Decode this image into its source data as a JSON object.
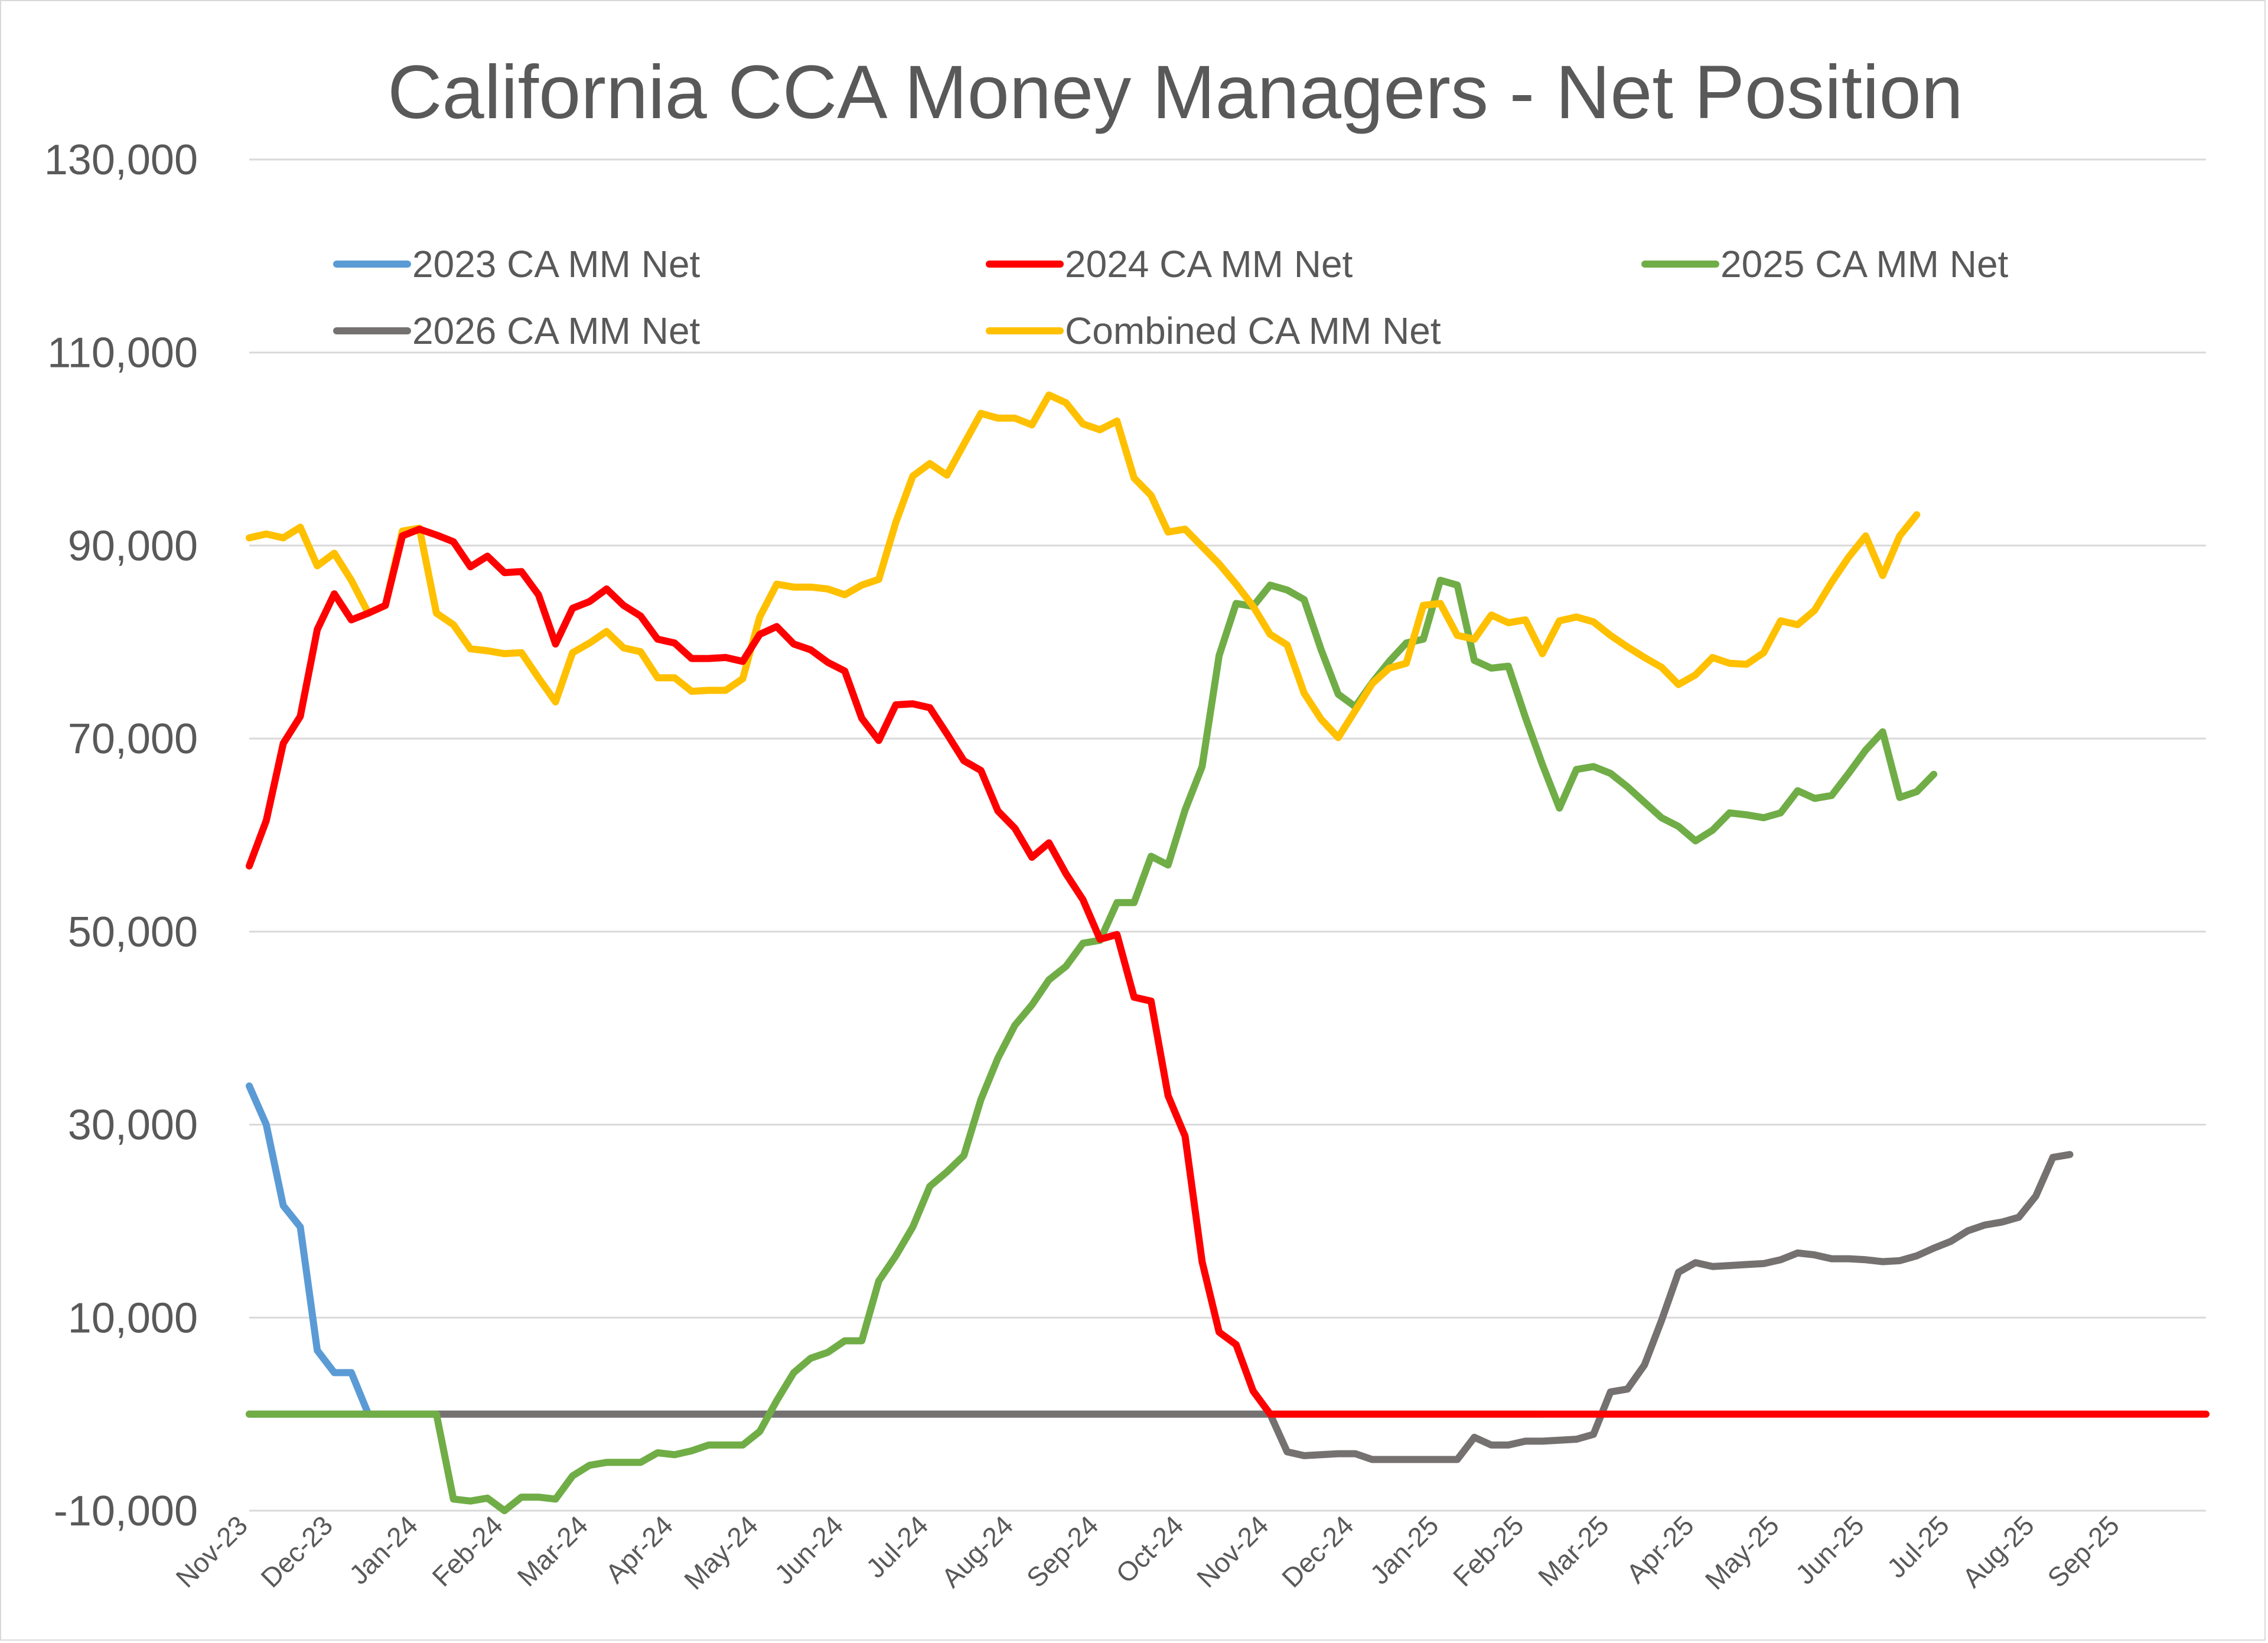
{
  "chart_data": {
    "type": "line",
    "title": "California CCA Money Managers - Net Position",
    "xlabel": "",
    "ylabel": "",
    "ylim": [
      -10000,
      130000
    ],
    "yticks": [
      -10000,
      10000,
      30000,
      50000,
      70000,
      90000,
      110000,
      130000
    ],
    "ytick_labels": [
      "-10,000",
      "10,000",
      "30,000",
      "50,000",
      "70,000",
      "90,000",
      "110,000",
      "130,000"
    ],
    "x_tick_labels": [
      "Nov-23",
      "Dec-23",
      "Jan-24",
      "Feb-24",
      "Mar-24",
      "Apr-24",
      "May-24",
      "Jun-24",
      "Jul-24",
      "Aug-24",
      "Sep-24",
      "Oct-24",
      "Nov-24",
      "Dec-24",
      "Jan-25",
      "Feb-25",
      "Mar-25",
      "Apr-25",
      "May-25",
      "Jun-25",
      "Jul-25",
      "Aug-25",
      "Sep-25"
    ],
    "x_tick_index": [
      0,
      5,
      10,
      15,
      20,
      25,
      30,
      35,
      40,
      45,
      50,
      55,
      60,
      65,
      70,
      75,
      80,
      85,
      90,
      95,
      100,
      105,
      110
    ],
    "num_points": 116,
    "grid": true,
    "legend_position": "top",
    "series": [
      {
        "name": "2023 CA MM Net",
        "color": "#5b9bd5",
        "points": [
          [
            0,
            34000
          ],
          [
            1,
            30000
          ],
          [
            2,
            21600
          ],
          [
            3,
            19400
          ],
          [
            4,
            6600
          ],
          [
            5,
            4300
          ],
          [
            6,
            4300
          ],
          [
            7,
            0
          ],
          [
            76,
            0
          ]
        ]
      },
      {
        "name": "2024 CA MM Net",
        "color": "#ff0000",
        "points": [
          [
            0,
            56800
          ],
          [
            1,
            61500
          ],
          [
            2,
            69500
          ],
          [
            3,
            72300
          ],
          [
            4,
            81300
          ],
          [
            5,
            85000
          ],
          [
            6,
            82300
          ],
          [
            7,
            83000
          ],
          [
            8,
            83800
          ],
          [
            9,
            91000
          ],
          [
            10,
            91700
          ],
          [
            11,
            91100
          ],
          [
            12,
            90400
          ],
          [
            13,
            87800
          ],
          [
            14,
            88900
          ],
          [
            15,
            87200
          ],
          [
            16,
            87300
          ],
          [
            17,
            84900
          ],
          [
            18,
            79800
          ],
          [
            19,
            83500
          ],
          [
            20,
            84200
          ],
          [
            21,
            85500
          ],
          [
            22,
            83800
          ],
          [
            23,
            82700
          ],
          [
            24,
            80300
          ],
          [
            25,
            79900
          ],
          [
            26,
            78300
          ],
          [
            27,
            78300
          ],
          [
            28,
            78400
          ],
          [
            29,
            78000
          ],
          [
            30,
            80800
          ],
          [
            31,
            81600
          ],
          [
            32,
            79800
          ],
          [
            33,
            79200
          ],
          [
            34,
            77900
          ],
          [
            35,
            77000
          ],
          [
            36,
            72100
          ],
          [
            37,
            69800
          ],
          [
            38,
            73500
          ],
          [
            39,
            73600
          ],
          [
            40,
            73200
          ],
          [
            41,
            70500
          ],
          [
            42,
            67700
          ],
          [
            43,
            66700
          ],
          [
            44,
            62500
          ],
          [
            45,
            60700
          ],
          [
            46,
            57700
          ],
          [
            47,
            59200
          ],
          [
            48,
            56000
          ],
          [
            49,
            53300
          ],
          [
            50,
            49200
          ],
          [
            51,
            49700
          ],
          [
            52,
            43200
          ],
          [
            53,
            42800
          ],
          [
            54,
            33000
          ],
          [
            55,
            28800
          ],
          [
            56,
            15800
          ],
          [
            57,
            8500
          ],
          [
            58,
            7200
          ],
          [
            59,
            2400
          ],
          [
            60,
            0
          ],
          [
            115,
            0
          ]
        ]
      },
      {
        "name": "2025 CA MM Net",
        "color": "#70ad47",
        "points": [
          [
            0,
            0
          ],
          [
            11,
            0
          ],
          [
            12,
            -8800
          ],
          [
            13,
            -9000
          ],
          [
            14,
            -8700
          ],
          [
            15,
            -10000
          ],
          [
            16,
            -8600
          ],
          [
            17,
            -8600
          ],
          [
            18,
            -8800
          ],
          [
            19,
            -6400
          ],
          [
            20,
            -5300
          ],
          [
            21,
            -5000
          ],
          [
            22,
            -5000
          ],
          [
            23,
            -5000
          ],
          [
            24,
            -4000
          ],
          [
            25,
            -4200
          ],
          [
            26,
            -3800
          ],
          [
            27,
            -3200
          ],
          [
            28,
            -3200
          ],
          [
            29,
            -3200
          ],
          [
            30,
            -1800
          ],
          [
            31,
            1400
          ],
          [
            32,
            4300
          ],
          [
            33,
            5800
          ],
          [
            34,
            6400
          ],
          [
            35,
            7600
          ],
          [
            36,
            7600
          ],
          [
            37,
            13800
          ],
          [
            38,
            16400
          ],
          [
            39,
            19400
          ],
          [
            40,
            23600
          ],
          [
            41,
            25100
          ],
          [
            42,
            26800
          ],
          [
            43,
            32600
          ],
          [
            44,
            36900
          ],
          [
            45,
            40300
          ],
          [
            46,
            42400
          ],
          [
            47,
            45000
          ],
          [
            48,
            46400
          ],
          [
            49,
            48800
          ],
          [
            50,
            49100
          ],
          [
            51,
            53000
          ],
          [
            52,
            53000
          ],
          [
            53,
            57800
          ],
          [
            54,
            56900
          ],
          [
            55,
            62600
          ],
          [
            56,
            67100
          ],
          [
            57,
            78600
          ],
          [
            58,
            84000
          ],
          [
            59,
            83700
          ],
          [
            60,
            85900
          ],
          [
            61,
            85400
          ],
          [
            62,
            84400
          ],
          [
            63,
            79200
          ],
          [
            64,
            74600
          ],
          [
            65,
            73300
          ],
          [
            66,
            75800
          ],
          [
            67,
            78000
          ],
          [
            68,
            79900
          ],
          [
            69,
            80300
          ],
          [
            70,
            86400
          ],
          [
            71,
            85900
          ],
          [
            72,
            78100
          ],
          [
            73,
            77300
          ],
          [
            74,
            77500
          ],
          [
            75,
            72200
          ],
          [
            76,
            67300
          ],
          [
            77,
            62800
          ],
          [
            78,
            66800
          ],
          [
            79,
            67100
          ],
          [
            80,
            66400
          ],
          [
            81,
            65000
          ],
          [
            82,
            63400
          ],
          [
            83,
            61800
          ],
          [
            84,
            60900
          ],
          [
            85,
            59400
          ],
          [
            86,
            60500
          ],
          [
            87,
            62300
          ],
          [
            88,
            62100
          ],
          [
            89,
            61800
          ],
          [
            90,
            62300
          ],
          [
            91,
            64600
          ],
          [
            92,
            63800
          ],
          [
            93,
            64100
          ],
          [
            94,
            66400
          ],
          [
            95,
            68800
          ],
          [
            96,
            70700
          ],
          [
            97,
            63900
          ],
          [
            98,
            64500
          ],
          [
            99,
            66300
          ]
        ]
      },
      {
        "name": "2026 CA MM Net",
        "color": "#767171",
        "points": [
          [
            0,
            0
          ],
          [
            60,
            0
          ],
          [
            61,
            -3900
          ],
          [
            62,
            -4300
          ],
          [
            63,
            -4200
          ],
          [
            64,
            -4100
          ],
          [
            65,
            -4100
          ],
          [
            66,
            -4700
          ],
          [
            67,
            -4700
          ],
          [
            68,
            -4700
          ],
          [
            69,
            -4700
          ],
          [
            70,
            -4700
          ],
          [
            71,
            -4700
          ],
          [
            72,
            -2400
          ],
          [
            73,
            -3200
          ],
          [
            74,
            -3200
          ],
          [
            75,
            -2800
          ],
          [
            76,
            -2800
          ],
          [
            77,
            -2700
          ],
          [
            78,
            -2600
          ],
          [
            79,
            -2100
          ],
          [
            80,
            2300
          ],
          [
            81,
            2600
          ],
          [
            82,
            5100
          ],
          [
            83,
            9700
          ],
          [
            84,
            14700
          ],
          [
            85,
            15700
          ],
          [
            86,
            15300
          ],
          [
            87,
            15400
          ],
          [
            88,
            15500
          ],
          [
            89,
            15600
          ],
          [
            90,
            16000
          ],
          [
            91,
            16700
          ],
          [
            92,
            16500
          ],
          [
            93,
            16100
          ],
          [
            94,
            16100
          ],
          [
            95,
            16000
          ],
          [
            96,
            15800
          ],
          [
            97,
            15900
          ],
          [
            98,
            16400
          ],
          [
            99,
            17200
          ],
          [
            100,
            17900
          ],
          [
            101,
            19000
          ],
          [
            102,
            19600
          ],
          [
            103,
            19900
          ],
          [
            104,
            20400
          ],
          [
            105,
            22600
          ],
          [
            106,
            26600
          ],
          [
            107,
            26900
          ]
        ]
      },
      {
        "name": "Combined CA MM Net",
        "color": "#ffc000",
        "points": [
          [
            0,
            90800
          ],
          [
            1,
            91200
          ],
          [
            2,
            90800
          ],
          [
            3,
            91900
          ],
          [
            4,
            87900
          ],
          [
            5,
            89200
          ],
          [
            6,
            86400
          ],
          [
            7,
            83000
          ],
          [
            8,
            83800
          ],
          [
            9,
            91500
          ],
          [
            10,
            91800
          ],
          [
            11,
            83000
          ],
          [
            12,
            81800
          ],
          [
            13,
            79300
          ],
          [
            14,
            79100
          ],
          [
            15,
            78800
          ],
          [
            16,
            78900
          ],
          [
            17,
            76300
          ],
          [
            18,
            73800
          ],
          [
            19,
            78900
          ],
          [
            20,
            79900
          ],
          [
            21,
            81100
          ],
          [
            22,
            79400
          ],
          [
            23,
            79000
          ],
          [
            24,
            76300
          ],
          [
            25,
            76300
          ],
          [
            26,
            74900
          ],
          [
            27,
            75000
          ],
          [
            28,
            75000
          ],
          [
            29,
            76200
          ],
          [
            30,
            82600
          ],
          [
            31,
            86000
          ],
          [
            32,
            85700
          ],
          [
            33,
            85700
          ],
          [
            34,
            85500
          ],
          [
            35,
            84900
          ],
          [
            36,
            85900
          ],
          [
            37,
            86500
          ],
          [
            38,
            92400
          ],
          [
            39,
            97200
          ],
          [
            40,
            98500
          ],
          [
            41,
            97300
          ],
          [
            42,
            100500
          ],
          [
            43,
            103700
          ],
          [
            44,
            103200
          ],
          [
            45,
            103200
          ],
          [
            46,
            102500
          ],
          [
            47,
            105600
          ],
          [
            48,
            104800
          ],
          [
            49,
            102600
          ],
          [
            50,
            102000
          ],
          [
            51,
            102900
          ],
          [
            52,
            97000
          ],
          [
            53,
            95200
          ],
          [
            54,
            91400
          ],
          [
            55,
            91700
          ],
          [
            56,
            89900
          ],
          [
            57,
            88100
          ],
          [
            58,
            86000
          ],
          [
            59,
            83700
          ],
          [
            60,
            80800
          ],
          [
            61,
            79700
          ],
          [
            62,
            74700
          ],
          [
            63,
            72000
          ],
          [
            64,
            70100
          ],
          [
            65,
            72900
          ],
          [
            66,
            75700
          ],
          [
            67,
            77300
          ],
          [
            68,
            77800
          ],
          [
            69,
            83800
          ],
          [
            70,
            84000
          ],
          [
            71,
            80700
          ],
          [
            72,
            80300
          ],
          [
            73,
            82800
          ],
          [
            74,
            82000
          ],
          [
            75,
            82300
          ],
          [
            76,
            78800
          ],
          [
            77,
            82200
          ],
          [
            78,
            82600
          ],
          [
            79,
            82100
          ],
          [
            80,
            80700
          ],
          [
            81,
            79500
          ],
          [
            82,
            78400
          ],
          [
            83,
            77400
          ],
          [
            84,
            75600
          ],
          [
            85,
            76600
          ],
          [
            86,
            78400
          ],
          [
            87,
            77800
          ],
          [
            88,
            77700
          ],
          [
            89,
            78900
          ],
          [
            90,
            82200
          ],
          [
            91,
            81800
          ],
          [
            92,
            83300
          ],
          [
            93,
            86200
          ],
          [
            94,
            88800
          ],
          [
            95,
            91000
          ],
          [
            96,
            86900
          ],
          [
            97,
            91000
          ],
          [
            98,
            93200
          ]
        ]
      }
    ]
  }
}
